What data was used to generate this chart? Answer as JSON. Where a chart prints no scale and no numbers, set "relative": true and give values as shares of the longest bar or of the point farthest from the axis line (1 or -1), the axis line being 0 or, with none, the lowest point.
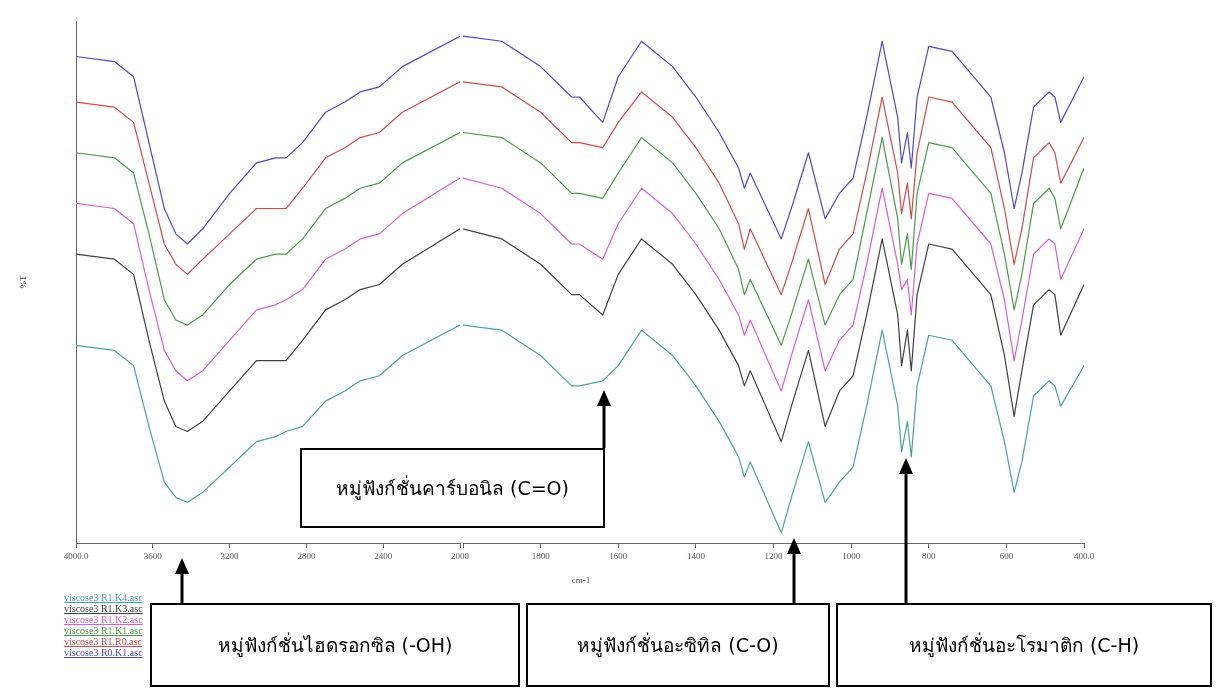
{
  "chart_data": [
    {
      "type": "line",
      "ylabel": "%T",
      "relative": true,
      "grid": false,
      "marker": "none",
      "line_style": "solid",
      "legend": "bottom left",
      "xlim": [
        4000,
        2000
      ],
      "xticks": [
        {
          "value": 4000,
          "label": "4000.0"
        },
        3600,
        3200,
        2800,
        2400,
        2000
      ],
      "x": [
        4000,
        3800,
        3700,
        3620,
        3540,
        3480,
        3420,
        3340,
        3200,
        3060,
        2960,
        2906,
        2820,
        2700,
        2600,
        2520,
        2420,
        2300,
        2000
      ],
      "series": [
        {
          "name": "viscose3 R1.K4.asc",
          "color": "#4aa39a",
          "values": [
            0.39,
            0.38,
            0.35,
            0.23,
            0.12,
            0.09,
            0.08,
            0.1,
            0.15,
            0.2,
            0.21,
            0.22,
            0.23,
            0.28,
            0.3,
            0.32,
            0.33,
            0.37,
            0.43
          ]
        },
        {
          "name": "viscose3 R1.K3.asc",
          "color": "#404040",
          "values": [
            0.57,
            0.56,
            0.53,
            0.4,
            0.28,
            0.23,
            0.22,
            0.24,
            0.3,
            0.36,
            0.36,
            0.36,
            0.4,
            0.46,
            0.48,
            0.5,
            0.51,
            0.55,
            0.62
          ]
        },
        {
          "name": "viscose3 R1.K2.asc",
          "color": "#d65fd6",
          "values": [
            0.67,
            0.66,
            0.63,
            0.5,
            0.38,
            0.34,
            0.32,
            0.34,
            0.4,
            0.46,
            0.47,
            0.48,
            0.5,
            0.56,
            0.58,
            0.6,
            0.61,
            0.65,
            0.72
          ]
        },
        {
          "name": "viscose3 R1.K1.asc",
          "color": "#4c9a4c",
          "values": [
            0.77,
            0.76,
            0.73,
            0.61,
            0.48,
            0.44,
            0.43,
            0.45,
            0.51,
            0.56,
            0.57,
            0.57,
            0.6,
            0.66,
            0.68,
            0.7,
            0.71,
            0.75,
            0.81
          ]
        },
        {
          "name": "viscose3 R1.R0.asc",
          "color": "#d24a4a",
          "values": [
            0.87,
            0.86,
            0.83,
            0.71,
            0.59,
            0.55,
            0.53,
            0.56,
            0.61,
            0.66,
            0.66,
            0.66,
            0.7,
            0.76,
            0.78,
            0.8,
            0.81,
            0.85,
            0.91
          ]
        },
        {
          "name": "viscose3 R0.K1.asc",
          "color": "#4a4ac8",
          "values": [
            0.96,
            0.95,
            0.92,
            0.79,
            0.66,
            0.61,
            0.59,
            0.62,
            0.69,
            0.75,
            0.76,
            0.76,
            0.79,
            0.85,
            0.87,
            0.89,
            0.9,
            0.94,
            1.0
          ]
        }
      ],
      "annotations": [
        "หมู่ฟังก์ชั่นไฮดรอกซิล (-OH)"
      ]
    },
    {
      "type": "line",
      "xlabel": "cm-1",
      "relative": true,
      "grid": false,
      "marker": "none",
      "line_style": "solid",
      "tick_labels": "x",
      "xlim": [
        2000,
        400
      ],
      "xticks": [
        {
          "value": 2000,
          "label": null
        },
        1800,
        1600,
        1400,
        1200,
        1000,
        800,
        600,
        {
          "value": 400,
          "label": "400.0"
        }
      ],
      "x": [
        2000,
        1900,
        1800,
        1720,
        1700,
        1640,
        1600,
        1540,
        1460,
        1400,
        1340,
        1290,
        1275,
        1260,
        1180,
        1150,
        1110,
        1067,
        1030,
        995,
        960,
        920,
        880,
        870,
        855,
        845,
        830,
        800,
        740,
        640,
        605,
        580,
        560,
        530,
        490,
        475,
        460,
        400
      ],
      "series": [
        {
          "color": "#4aa39a",
          "values": [
            0.43,
            0.42,
            0.37,
            0.31,
            0.31,
            0.32,
            0.35,
            0.42,
            0.37,
            0.31,
            0.24,
            0.17,
            0.13,
            0.16,
            0.02,
            0.1,
            0.2,
            0.08,
            0.12,
            0.15,
            0.27,
            0.42,
            0.27,
            0.18,
            0.24,
            0.17,
            0.31,
            0.41,
            0.4,
            0.31,
            0.2,
            0.1,
            0.16,
            0.29,
            0.32,
            0.31,
            0.27,
            0.35
          ]
        },
        {
          "color": "#404040",
          "values": [
            0.62,
            0.6,
            0.55,
            0.49,
            0.49,
            0.45,
            0.53,
            0.6,
            0.55,
            0.49,
            0.42,
            0.35,
            0.31,
            0.34,
            0.2,
            0.28,
            0.38,
            0.23,
            0.3,
            0.33,
            0.45,
            0.6,
            0.45,
            0.35,
            0.42,
            0.34,
            0.49,
            0.59,
            0.58,
            0.49,
            0.37,
            0.25,
            0.34,
            0.47,
            0.5,
            0.49,
            0.41,
            0.51
          ]
        },
        {
          "color": "#d65fd6",
          "values": [
            0.72,
            0.7,
            0.65,
            0.59,
            0.59,
            0.56,
            0.63,
            0.7,
            0.65,
            0.59,
            0.52,
            0.45,
            0.41,
            0.44,
            0.3,
            0.38,
            0.48,
            0.34,
            0.4,
            0.43,
            0.55,
            0.7,
            0.55,
            0.5,
            0.52,
            0.45,
            0.59,
            0.69,
            0.68,
            0.59,
            0.48,
            0.36,
            0.44,
            0.57,
            0.6,
            0.59,
            0.52,
            0.62
          ]
        },
        {
          "color": "#4c9a4c",
          "values": [
            0.81,
            0.8,
            0.75,
            0.69,
            0.69,
            0.68,
            0.73,
            0.8,
            0.75,
            0.69,
            0.62,
            0.54,
            0.49,
            0.52,
            0.39,
            0.46,
            0.56,
            0.43,
            0.49,
            0.52,
            0.65,
            0.8,
            0.64,
            0.55,
            0.61,
            0.54,
            0.69,
            0.79,
            0.78,
            0.69,
            0.57,
            0.46,
            0.53,
            0.67,
            0.7,
            0.68,
            0.62,
            0.74
          ]
        },
        {
          "color": "#d24a4a",
          "values": [
            0.91,
            0.9,
            0.85,
            0.79,
            0.79,
            0.78,
            0.83,
            0.89,
            0.84,
            0.78,
            0.71,
            0.63,
            0.58,
            0.62,
            0.49,
            0.56,
            0.66,
            0.51,
            0.58,
            0.61,
            0.73,
            0.88,
            0.73,
            0.65,
            0.71,
            0.64,
            0.77,
            0.88,
            0.87,
            0.78,
            0.66,
            0.55,
            0.62,
            0.76,
            0.79,
            0.77,
            0.71,
            0.8
          ]
        },
        {
          "color": "#4a4ac8",
          "values": [
            1.0,
            0.99,
            0.94,
            0.88,
            0.88,
            0.83,
            0.92,
            0.99,
            0.94,
            0.88,
            0.81,
            0.74,
            0.7,
            0.73,
            0.6,
            0.67,
            0.77,
            0.64,
            0.69,
            0.72,
            0.84,
            0.99,
            0.84,
            0.75,
            0.81,
            0.74,
            0.88,
            0.98,
            0.97,
            0.88,
            0.77,
            0.66,
            0.73,
            0.86,
            0.89,
            0.88,
            0.83,
            0.92
          ]
        }
      ],
      "annotations": [
        "หมู่ฟังก์ชั่นคาร์บอนิล (C=O)",
        "หมู่ฟังก์ชั่นอะซิทิล (C-O)",
        "หมู่ฟังก์ชั่นอะโรมาติก (C-H)"
      ]
    }
  ]
}
